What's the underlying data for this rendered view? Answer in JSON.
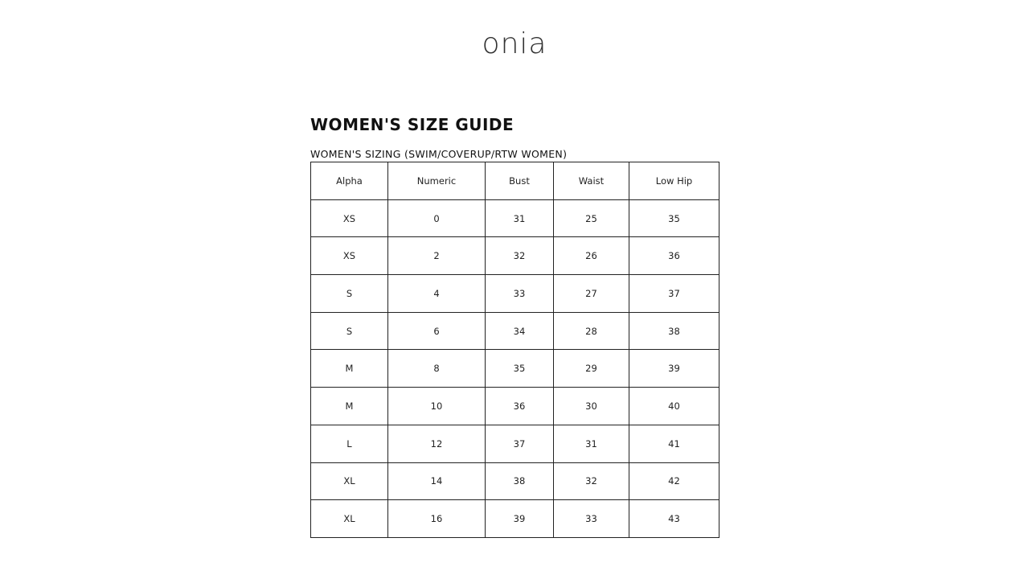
{
  "brand": "onia",
  "title": "WOMEN'S SIZE GUIDE",
  "subtitle": "WOMEN'S SIZING (SWIM/COVERUP/RTW WOMEN)",
  "table": {
    "headers": [
      "Alpha",
      "Numeric",
      "Bust",
      "Waist",
      "Low Hip"
    ],
    "rows": [
      [
        "XS",
        "0",
        "31",
        "25",
        "35"
      ],
      [
        "XS",
        "2",
        "32",
        "26",
        "36"
      ],
      [
        "S",
        "4",
        "33",
        "27",
        "37"
      ],
      [
        "S",
        "6",
        "34",
        "28",
        "38"
      ],
      [
        "M",
        "8",
        "35",
        "29",
        "39"
      ],
      [
        "M",
        "10",
        "36",
        "30",
        "40"
      ],
      [
        "L",
        "12",
        "37",
        "31",
        "41"
      ],
      [
        "XL",
        "14",
        "38",
        "32",
        "42"
      ],
      [
        "XL",
        "16",
        "39",
        "33",
        "43"
      ]
    ]
  }
}
